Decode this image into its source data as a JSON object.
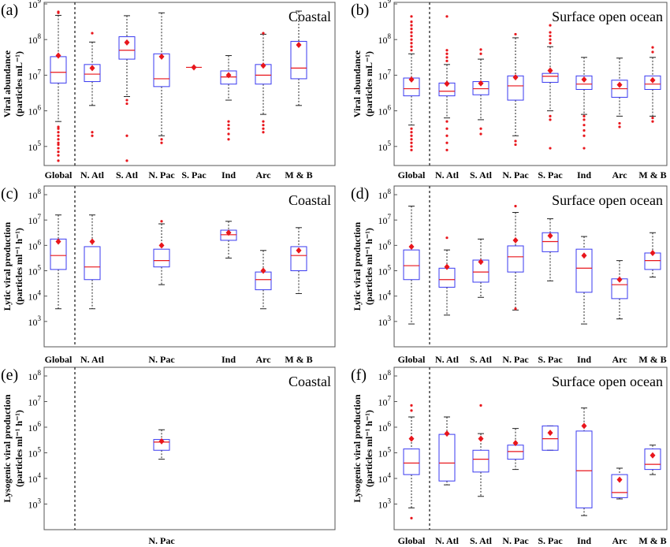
{
  "chart_data": [
    {
      "panel": "(a)",
      "title": "Coastal",
      "type": "box",
      "ylabel": [
        "Viral abundance",
        "(particles mL⁻¹)"
      ],
      "log_range": [
        4,
        9
      ],
      "y_ticks": [
        5,
        6,
        7,
        8,
        9
      ],
      "categories": [
        "Global",
        "N. Atl",
        "S. Atl",
        "N. Pac",
        "S. Pac",
        "Ind",
        "Arc",
        "M & B"
      ],
      "boxes": [
        {
          "cat": "Global",
          "wlo": 5.7,
          "q1": 6.78,
          "med": 7.08,
          "q3": 7.52,
          "whi": 8.68,
          "mean": 7.55,
          "outliers": [
            4.6,
            4.75,
            4.85,
            4.95,
            5.05,
            5.1,
            5.2,
            5.3,
            5.4,
            5.5,
            5.55,
            8.78,
            8.75
          ]
        },
        {
          "cat": "N. Atl",
          "wlo": 6.15,
          "q1": 6.82,
          "med": 7.03,
          "q3": 7.3,
          "whi": 7.93,
          "mean": 7.2,
          "outliers": [
            5.3,
            5.4,
            8.18
          ]
        },
        {
          "cat": "S. Atl",
          "wlo": 6.4,
          "q1": 7.45,
          "med": 7.7,
          "q3": 8.08,
          "whi": 8.67,
          "mean": 7.92,
          "outliers": [
            4.6,
            5.3,
            6.2,
            6.3
          ]
        },
        {
          "cat": "N. Pac",
          "wlo": 5.3,
          "q1": 6.68,
          "med": 6.9,
          "q3": 7.6,
          "whi": 8.75,
          "mean": 7.52,
          "outliers": [
            5.1,
            5.2
          ]
        },
        {
          "cat": "S. Pac",
          "wlo": 7.22,
          "q1": 7.22,
          "med": 7.22,
          "q3": 7.22,
          "whi": 7.22,
          "mean": 7.22,
          "outliers": []
        },
        {
          "cat": "Ind",
          "wlo": 6.3,
          "q1": 6.75,
          "med": 6.95,
          "q3": 7.12,
          "whi": 7.55,
          "mean": 7.0,
          "outliers": [
            5.2,
            5.35,
            5.5,
            5.6,
            5.7
          ]
        },
        {
          "cat": "Arc",
          "wlo": 5.9,
          "q1": 6.75,
          "med": 7.0,
          "q3": 7.3,
          "whi": 8.15,
          "mean": 7.27,
          "outliers": [
            5.4,
            5.5,
            5.6,
            5.7,
            8.18
          ]
        },
        {
          "cat": "M & B",
          "wlo": 6.15,
          "q1": 6.9,
          "med": 7.2,
          "q3": 7.95,
          "whi": 8.8,
          "mean": 7.85,
          "outliers": []
        }
      ]
    },
    {
      "panel": "(b)",
      "title": "Surface open ocean",
      "type": "box",
      "ylabel": [
        "Viral abundance",
        "(particles mL⁻¹)"
      ],
      "log_range": [
        4,
        9
      ],
      "y_ticks": [
        5,
        6,
        7,
        8,
        9
      ],
      "categories": [
        "Global",
        "N. Atl",
        "S. Atl",
        "N. Pac",
        "S. Pac",
        "Ind",
        "Arc",
        "M & B"
      ],
      "boxes": [
        {
          "cat": "Global",
          "wlo": 5.6,
          "q1": 6.42,
          "med": 6.62,
          "q3": 6.92,
          "whi": 7.6,
          "mean": 6.88,
          "outliers": [
            4.9,
            5.0,
            5.1,
            5.2,
            5.3,
            5.4,
            5.5,
            7.7,
            7.8,
            7.9,
            8.0,
            8.1,
            8.2,
            8.3,
            8.4,
            8.5,
            8.65
          ]
        },
        {
          "cat": "N. Atl",
          "wlo": 5.8,
          "q1": 6.42,
          "med": 6.55,
          "q3": 6.78,
          "whi": 7.3,
          "mean": 6.76,
          "outliers": [
            4.9,
            5.1,
            5.3,
            5.5,
            5.7,
            7.4,
            7.5,
            7.6,
            7.7,
            8.65
          ]
        },
        {
          "cat": "S. Atl",
          "wlo": 5.75,
          "q1": 6.45,
          "med": 6.62,
          "q3": 6.82,
          "whi": 7.45,
          "mean": 6.77,
          "outliers": [
            5.35,
            5.5,
            7.6,
            7.72
          ]
        },
        {
          "cat": "N. Pac",
          "wlo": 5.3,
          "q1": 6.3,
          "med": 6.7,
          "q3": 6.98,
          "whi": 8.05,
          "mean": 6.94,
          "outliers": [
            5.05,
            5.15,
            8.15
          ]
        },
        {
          "cat": "S. Pac",
          "wlo": 6.0,
          "q1": 6.8,
          "med": 6.97,
          "q3": 7.05,
          "whi": 7.8,
          "mean": 7.13,
          "outliers": [
            4.95,
            5.75,
            5.85,
            7.9,
            8.0,
            8.1,
            8.2,
            8.4
          ]
        },
        {
          "cat": "Ind",
          "wlo": 5.9,
          "q1": 6.6,
          "med": 6.75,
          "q3": 6.98,
          "whi": 7.5,
          "mean": 6.88,
          "outliers": [
            4.95,
            5.3,
            5.45,
            5.6,
            5.75,
            5.85
          ]
        },
        {
          "cat": "Arc",
          "wlo": 5.85,
          "q1": 6.38,
          "med": 6.62,
          "q3": 6.86,
          "whi": 7.48,
          "mean": 6.73,
          "outliers": [
            5.55,
            5.65
          ]
        },
        {
          "cat": "M & B",
          "wlo": 5.85,
          "q1": 6.6,
          "med": 6.75,
          "q3": 6.98,
          "whi": 7.5,
          "mean": 6.86,
          "outliers": [
            5.7,
            5.8,
            7.65,
            7.78
          ]
        }
      ]
    },
    {
      "panel": "(c)",
      "title": "Coastal",
      "type": "box",
      "ylabel": [
        "Lytic viral production",
        "(particles ml⁻¹ h⁻¹)"
      ],
      "log_range": [
        2,
        8
      ],
      "y_ticks": [
        3,
        4,
        5,
        6,
        7,
        8
      ],
      "categories": [
        "Global",
        "N. Atl",
        "N. Pac",
        "Ind",
        "Arc",
        "M & B"
      ],
      "boxes": [
        {
          "cat": "Global",
          "wlo": 3.5,
          "q1": 5.05,
          "med": 5.6,
          "q3": 6.25,
          "whi": 7.2,
          "mean": 6.15,
          "outliers": []
        },
        {
          "cat": "N. Atl",
          "wlo": 3.5,
          "q1": 4.65,
          "med": 5.15,
          "q3": 5.95,
          "whi": 7.2,
          "mean": 6.15,
          "outliers": []
        },
        {
          "cat": "N. Pac",
          "wlo": 4.45,
          "q1": 5.15,
          "med": 5.4,
          "q3": 5.85,
          "whi": 6.85,
          "mean": 6.0,
          "outliers": [
            6.95
          ]
        },
        {
          "cat": "Ind",
          "wlo": 5.5,
          "q1": 6.2,
          "med": 6.42,
          "q3": 6.6,
          "whi": 6.95,
          "mean": 6.5,
          "outliers": []
        },
        {
          "cat": "Arc",
          "wlo": 3.5,
          "q1": 4.25,
          "med": 4.65,
          "q3": 4.95,
          "whi": 5.8,
          "mean": 5.0,
          "outliers": []
        },
        {
          "cat": "M & B",
          "wlo": 4.1,
          "q1": 5.0,
          "med": 5.6,
          "q3": 5.95,
          "whi": 6.7,
          "mean": 5.8,
          "outliers": []
        }
      ]
    },
    {
      "panel": "(d)",
      "title": "Surface open ocean",
      "type": "box",
      "ylabel": [
        "Lytic viral production",
        "(particles ml⁻¹ h⁻¹)"
      ],
      "log_range": [
        2,
        8
      ],
      "y_ticks": [
        3,
        4,
        5,
        6,
        7,
        8
      ],
      "categories": [
        "Global",
        "N. Atl",
        "S. Atl",
        "N. Pac",
        "S. Pac",
        "Ind",
        "Arc",
        "M & B"
      ],
      "boxes": [
        {
          "cat": "Global",
          "wlo": 2.9,
          "q1": 4.65,
          "med": 5.2,
          "q3": 5.82,
          "whi": 7.55,
          "mean": 5.95,
          "outliers": []
        },
        {
          "cat": "N. Atl",
          "wlo": 3.25,
          "q1": 4.35,
          "med": 4.65,
          "q3": 5.1,
          "whi": 5.82,
          "mean": 5.15,
          "outliers": [
            6.3
          ]
        },
        {
          "cat": "S. Atl",
          "wlo": 3.95,
          "q1": 4.55,
          "med": 4.95,
          "q3": 5.42,
          "whi": 6.25,
          "mean": 5.35,
          "outliers": []
        },
        {
          "cat": "N. Pac",
          "wlo": 3.45,
          "q1": 4.95,
          "med": 5.55,
          "q3": 5.98,
          "whi": 7.3,
          "mean": 6.2,
          "outliers": [
            3.5,
            7.55
          ]
        },
        {
          "cat": "S. Pac",
          "wlo": 4.6,
          "q1": 5.75,
          "med": 6.15,
          "q3": 6.5,
          "whi": 7.05,
          "mean": 6.38,
          "outliers": []
        },
        {
          "cat": "Ind",
          "wlo": 2.9,
          "q1": 4.15,
          "med": 5.1,
          "q3": 5.85,
          "whi": 6.35,
          "mean": 5.6,
          "outliers": []
        },
        {
          "cat": "Arc",
          "wlo": 3.1,
          "q1": 3.9,
          "med": 4.45,
          "q3": 4.68,
          "whi": 5.4,
          "mean": 4.65,
          "outliers": []
        },
        {
          "cat": "M & B",
          "wlo": 4.75,
          "q1": 5.05,
          "med": 5.4,
          "q3": 5.7,
          "whi": 6.5,
          "mean": 5.7,
          "outliers": []
        }
      ]
    },
    {
      "panel": "(e)",
      "title": "Coastal",
      "type": "box",
      "ylabel": [
        "Lysogenic viral production",
        "(particles ml⁻¹ h⁻¹)"
      ],
      "log_range": [
        2,
        8
      ],
      "y_ticks": [
        3,
        4,
        5,
        6,
        7,
        8
      ],
      "categories": [
        "N. Pac"
      ],
      "boxes": [
        {
          "cat": "N. Pac",
          "wlo": 4.75,
          "q1": 5.1,
          "med": 5.42,
          "q3": 5.52,
          "whi": 5.9,
          "mean": 5.45,
          "outliers": []
        }
      ]
    },
    {
      "panel": "(f)",
      "title": "Surface open ocean",
      "type": "box",
      "ylabel": [
        "Lysogenic viral production",
        "(particles ml⁻¹ h⁻¹)"
      ],
      "log_range": [
        2,
        8
      ],
      "y_ticks": [
        3,
        4,
        5,
        6,
        7,
        8
      ],
      "categories": [
        "Global",
        "N. Atl",
        "S. Atl",
        "N. Pac",
        "S. Pac",
        "Ind",
        "Arc",
        "M & B"
      ],
      "boxes": [
        {
          "cat": "Global",
          "wlo": 2.85,
          "q1": 4.15,
          "med": 4.6,
          "q3": 5.15,
          "whi": 6.4,
          "mean": 5.55,
          "outliers": [
            2.45,
            6.65,
            6.85
          ]
        },
        {
          "cat": "N. Atl",
          "wlo": 3.75,
          "q1": 3.9,
          "med": 4.6,
          "q3": 5.72,
          "whi": 6.4,
          "mean": 5.75,
          "outliers": []
        },
        {
          "cat": "S. Atl",
          "wlo": 3.3,
          "q1": 4.25,
          "med": 4.75,
          "q3": 5.1,
          "whi": 5.75,
          "mean": 5.55,
          "outliers": [
            6.85
          ]
        },
        {
          "cat": "N. Pac",
          "wlo": 4.35,
          "q1": 4.75,
          "med": 5.05,
          "q3": 5.3,
          "whi": 5.95,
          "mean": 5.38,
          "outliers": []
        },
        {
          "cat": "S. Pac",
          "wlo": 5.1,
          "q1": 5.1,
          "med": 5.55,
          "q3": 6.05,
          "whi": 6.05,
          "mean": 5.78,
          "outliers": []
        },
        {
          "cat": "Ind",
          "wlo": 2.55,
          "q1": 2.85,
          "med": 4.3,
          "q3": 5.85,
          "whi": 6.75,
          "mean": 6.05,
          "outliers": []
        },
        {
          "cat": "Arc",
          "wlo": 3.2,
          "q1": 3.25,
          "med": 3.45,
          "q3": 4.15,
          "whi": 4.4,
          "mean": 3.95,
          "outliers": []
        },
        {
          "cat": "M & B",
          "wlo": 4.15,
          "q1": 4.35,
          "med": 4.55,
          "q3": 5.15,
          "whi": 5.3,
          "mean": 4.9,
          "outliers": []
        }
      ]
    }
  ]
}
